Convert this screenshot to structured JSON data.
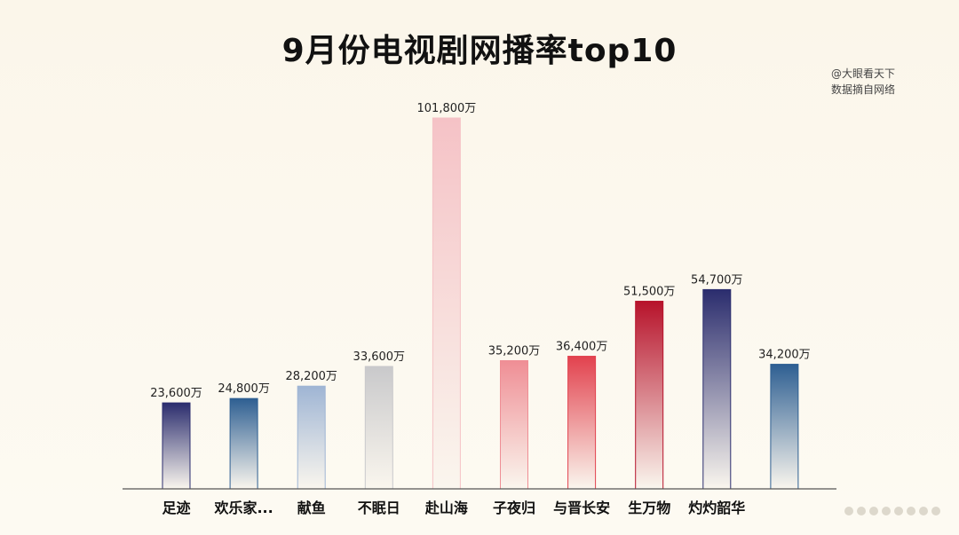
{
  "chart_data": {
    "type": "bar",
    "title": "9月份电视剧网播率top10",
    "source_lines": [
      "@大眼看天下",
      "数据摘自网络"
    ],
    "categories": [
      "足迹",
      "欢乐家...",
      "献鱼",
      "不眠日",
      "赴山海",
      "子夜归",
      "与晋长安",
      "生万物",
      "灼灼韶华",
      ""
    ],
    "values": [
      23600,
      24800,
      28200,
      33600,
      101800,
      35200,
      36400,
      51500,
      54700,
      34200
    ],
    "value_labels": [
      "23,600万",
      "24,800万",
      "28,200万",
      "33,600万",
      "101,800万",
      "35,200万",
      "36,400万",
      "51,500万",
      "54,700万",
      "34,200万"
    ],
    "unit": "万",
    "ylim": [
      0,
      101800
    ],
    "grid": false,
    "bar_colors": [
      "#2b2d6e",
      "#2e5f92",
      "#9fb5d4",
      "#c9c9cb",
      "#f5c2c6",
      "#ef8e95",
      "#e2424e",
      "#b7132b",
      "#2b2d6e",
      "#2e5f92"
    ]
  }
}
